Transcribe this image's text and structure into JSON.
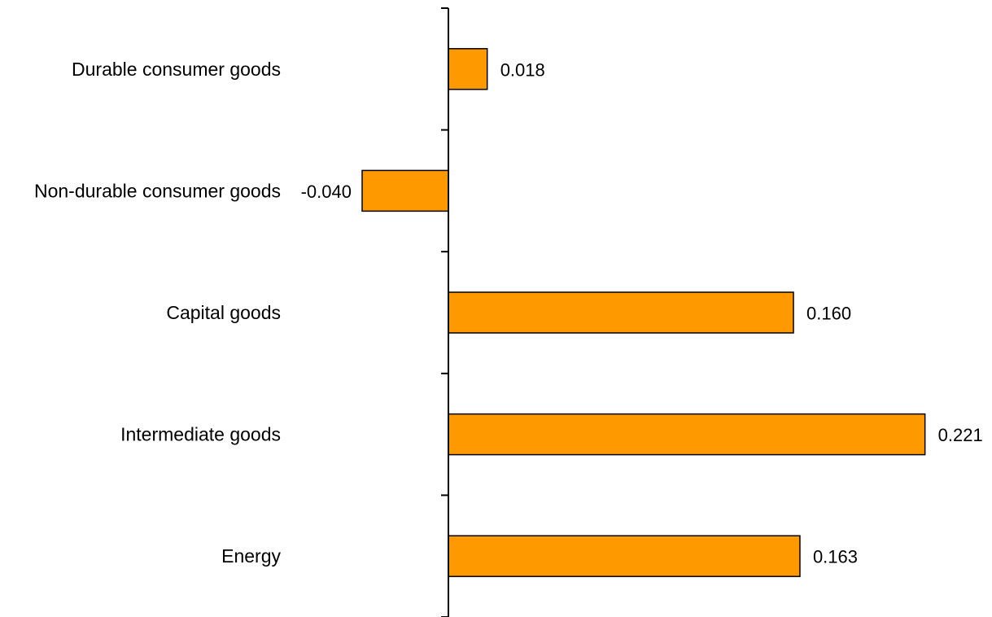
{
  "chart_data": {
    "type": "bar",
    "orientation": "horizontal",
    "title": "",
    "xlabel": "",
    "ylabel": "",
    "categories": [
      "Durable consumer goods",
      "Non-durable consumer goods",
      "Capital goods",
      "Intermediate goods",
      "Energy"
    ],
    "values": [
      0.018,
      -0.04,
      0.16,
      0.221,
      0.163
    ],
    "value_labels": [
      "0.018",
      "-0.040",
      "0.160",
      "0.221",
      "0.163"
    ],
    "xlim": [
      -0.058,
      0.222
    ],
    "grid": false,
    "legend": "none",
    "bar_color": "#FF9900",
    "bar_edge_color": "#000000"
  }
}
